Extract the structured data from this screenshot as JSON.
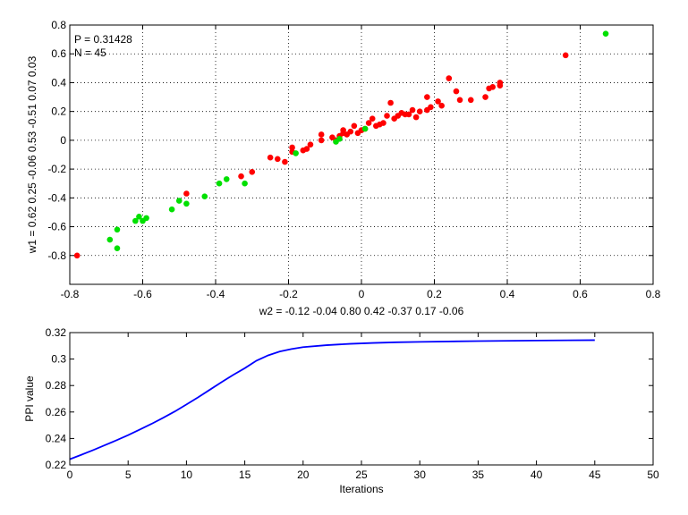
{
  "chart_data": [
    {
      "type": "scatter",
      "annotations": [
        "P = 0.31428",
        "N = 45"
      ],
      "xlabel": "w2 = -0.12  -0.04  0.80  0.42  -0.37  0.17  -0.06",
      "ylabel": "w1 = 0.62  0.25  -0.06  0.53  -0.51  0.07  0.03",
      "xlim": [
        -0.8,
        0.8
      ],
      "ylim": [
        -1.0,
        0.8
      ],
      "xticks": [
        -0.8,
        -0.6,
        -0.4,
        -0.2,
        0,
        0.2,
        0.4,
        0.6,
        0.8
      ],
      "yticks": [
        -0.8,
        -0.6,
        -0.4,
        -0.2,
        0,
        0.2,
        0.4,
        0.6,
        0.8
      ],
      "xticklabels": [
        "-0.8",
        "-0.6",
        "-0.4",
        "-0.2",
        "0",
        "0.2",
        "0.4",
        "0.6",
        "0.8"
      ],
      "yticklabels": [
        "-0.8",
        "-0.6",
        "-0.4",
        "-0.2",
        "0",
        "0.2",
        "0.4",
        "0.6",
        "0.8"
      ],
      "grid": true,
      "series": [
        {
          "color": "#ff0000",
          "points": [
            [
              -0.78,
              -0.8
            ],
            [
              -0.48,
              -0.37
            ],
            [
              -0.33,
              -0.25
            ],
            [
              -0.3,
              -0.22
            ],
            [
              -0.25,
              -0.12
            ],
            [
              -0.23,
              -0.13
            ],
            [
              -0.21,
              -0.15
            ],
            [
              -0.19,
              -0.08
            ],
            [
              -0.19,
              -0.05
            ],
            [
              -0.16,
              -0.07
            ],
            [
              -0.15,
              -0.06
            ],
            [
              -0.14,
              -0.03
            ],
            [
              -0.11,
              0.04
            ],
            [
              -0.11,
              0.0
            ],
            [
              -0.08,
              0.02
            ],
            [
              -0.07,
              0.0
            ],
            [
              -0.06,
              0.03
            ],
            [
              -0.05,
              0.07
            ],
            [
              -0.05,
              0.05
            ],
            [
              -0.04,
              0.04
            ],
            [
              -0.03,
              0.06
            ],
            [
              -0.02,
              0.1
            ],
            [
              -0.01,
              0.05
            ],
            [
              0.0,
              0.07
            ],
            [
              0.01,
              0.08
            ],
            [
              0.02,
              0.12
            ],
            [
              0.03,
              0.15
            ],
            [
              0.04,
              0.1
            ],
            [
              0.05,
              0.11
            ],
            [
              0.06,
              0.12
            ],
            [
              0.07,
              0.17
            ],
            [
              0.08,
              0.26
            ],
            [
              0.09,
              0.15
            ],
            [
              0.1,
              0.17
            ],
            [
              0.11,
              0.19
            ],
            [
              0.12,
              0.18
            ],
            [
              0.13,
              0.18
            ],
            [
              0.14,
              0.21
            ],
            [
              0.15,
              0.16
            ],
            [
              0.16,
              0.2
            ],
            [
              0.18,
              0.21
            ],
            [
              0.18,
              0.3
            ],
            [
              0.19,
              0.23
            ],
            [
              0.21,
              0.27
            ],
            [
              0.22,
              0.24
            ],
            [
              0.24,
              0.43
            ],
            [
              0.26,
              0.34
            ],
            [
              0.27,
              0.28
            ],
            [
              0.3,
              0.28
            ],
            [
              0.34,
              0.3
            ],
            [
              0.35,
              0.36
            ],
            [
              0.36,
              0.37
            ],
            [
              0.38,
              0.38
            ],
            [
              0.38,
              0.4
            ],
            [
              0.56,
              0.59
            ]
          ]
        },
        {
          "color": "#00e000",
          "points": [
            [
              -0.69,
              -0.69
            ],
            [
              -0.67,
              -0.62
            ],
            [
              -0.67,
              -0.75
            ],
            [
              -0.62,
              -0.56
            ],
            [
              -0.61,
              -0.53
            ],
            [
              -0.6,
              -0.56
            ],
            [
              -0.59,
              -0.54
            ],
            [
              -0.52,
              -0.48
            ],
            [
              -0.5,
              -0.42
            ],
            [
              -0.48,
              -0.44
            ],
            [
              -0.43,
              -0.39
            ],
            [
              -0.39,
              -0.3
            ],
            [
              -0.37,
              -0.27
            ],
            [
              -0.32,
              -0.3
            ],
            [
              -0.18,
              -0.09
            ],
            [
              -0.07,
              -0.01
            ],
            [
              -0.06,
              0.01
            ],
            [
              0.01,
              0.08
            ],
            [
              0.67,
              0.74
            ]
          ]
        }
      ]
    },
    {
      "type": "line",
      "xlabel": "Iterations",
      "ylabel": "PPI value",
      "xlim": [
        0,
        50
      ],
      "ylim": [
        0.22,
        0.32
      ],
      "xticks": [
        0,
        5,
        10,
        15,
        20,
        25,
        30,
        35,
        40,
        45,
        50
      ],
      "yticks": [
        0.22,
        0.24,
        0.26,
        0.28,
        0.3,
        0.32
      ],
      "xticklabels": [
        "0",
        "5",
        "10",
        "15",
        "20",
        "25",
        "30",
        "35",
        "40",
        "45",
        "50"
      ],
      "yticklabels": [
        "0.22",
        "0.24",
        "0.26",
        "0.28",
        "0.3",
        "0.32"
      ],
      "grid": false,
      "series": [
        {
          "color": "#0000ff",
          "x": [
            0,
            1,
            2,
            3,
            4,
            5,
            6,
            7,
            8,
            9,
            10,
            11,
            12,
            13,
            14,
            15,
            16,
            17,
            18,
            19,
            20,
            22,
            24,
            26,
            28,
            30,
            35,
            40,
            45
          ],
          "y": [
            0.2243,
            0.2277,
            0.2312,
            0.2349,
            0.2386,
            0.2425,
            0.2467,
            0.251,
            0.2556,
            0.2604,
            0.2657,
            0.2711,
            0.2768,
            0.2825,
            0.288,
            0.2931,
            0.2988,
            0.3028,
            0.3057,
            0.3076,
            0.309,
            0.3105,
            0.3115,
            0.3122,
            0.3127,
            0.313,
            0.3136,
            0.314,
            0.3143
          ]
        }
      ]
    }
  ]
}
